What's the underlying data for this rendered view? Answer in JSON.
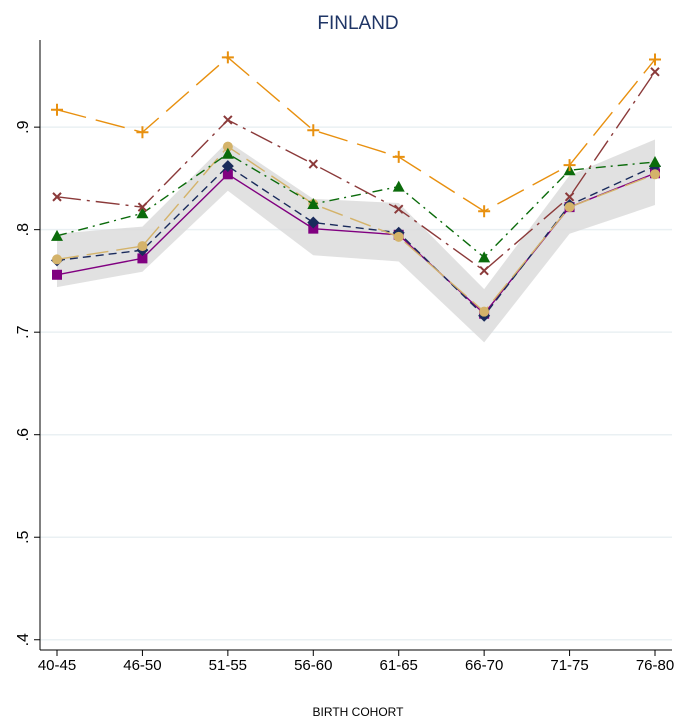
{
  "chart_data": {
    "type": "line",
    "title": "FINLAND",
    "x_label": "BIRTH COHORT",
    "categories": [
      "40-45",
      "46-50",
      "51-55",
      "56-60",
      "61-65",
      "66-70",
      "71-75",
      "76-80"
    ],
    "ylim": [
      0.39,
      0.985
    ],
    "yticks": [
      {
        "value": 0.4,
        "label": ".4"
      },
      {
        "value": 0.5,
        "label": ".5"
      },
      {
        "value": 0.6,
        "label": ".6"
      },
      {
        "value": 0.7,
        "label": ".7"
      },
      {
        "value": 0.8,
        "label": ".8"
      },
      {
        "value": 0.9,
        "label": ".9"
      }
    ],
    "grid": true,
    "band": {
      "color": "#d9d9d9",
      "lower": [
        0.744,
        0.759,
        0.838,
        0.775,
        0.769,
        0.69,
        0.796,
        0.824
      ],
      "upper": [
        0.796,
        0.803,
        0.886,
        0.83,
        0.826,
        0.742,
        0.853,
        0.888
      ]
    },
    "series": [
      {
        "color": "#800080",
        "marker": "square",
        "dash": "none",
        "values": [
          0.756,
          0.772,
          0.854,
          0.801,
          0.795,
          0.718,
          0.822,
          0.855
        ]
      },
      {
        "color": "#1a2b5c",
        "marker": "diamond",
        "dash": "8 5",
        "values": [
          0.77,
          0.78,
          0.862,
          0.807,
          0.797,
          0.716,
          0.824,
          0.862
        ]
      },
      {
        "color": "#d4b36a",
        "marker": "circle",
        "dash": "22 8",
        "values": [
          0.771,
          0.784,
          0.881,
          0.825,
          0.793,
          0.72,
          0.822,
          0.854
        ]
      },
      {
        "color": "#0b6b0b",
        "marker": "triangle",
        "dash": "10 5 2 5",
        "values": [
          0.794,
          0.816,
          0.874,
          0.825,
          0.842,
          0.773,
          0.858,
          0.866
        ]
      },
      {
        "color": "#8b3a3a",
        "marker": "x",
        "dash": "24 6 3 6",
        "values": [
          0.832,
          0.822,
          0.907,
          0.864,
          0.82,
          0.76,
          0.832,
          0.954
        ]
      },
      {
        "color": "#e8900f",
        "marker": "plus",
        "dash": "30 10",
        "values": [
          0.917,
          0.895,
          0.968,
          0.897,
          0.871,
          0.818,
          0.863,
          0.966
        ]
      }
    ]
  }
}
